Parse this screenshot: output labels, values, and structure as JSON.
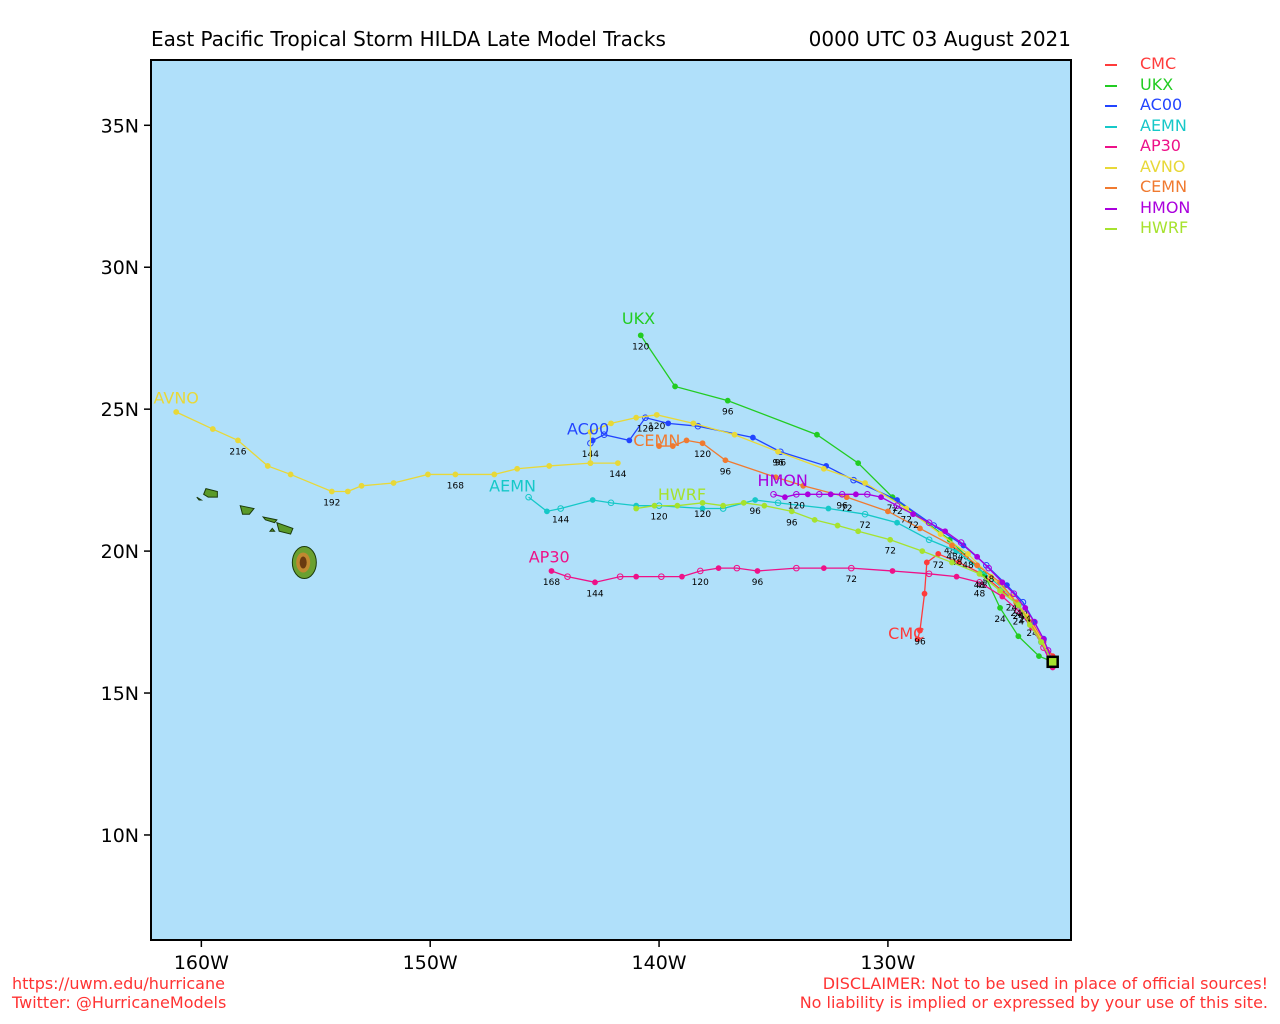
{
  "title": {
    "left": "East Pacific Tropical Storm HILDA Late Model Tracks",
    "right": "0000 UTC 03 August 2021"
  },
  "map": {
    "ocean_color": "#b0e0fa",
    "x_ticks": [
      "160W",
      "150W",
      "140W",
      "130W"
    ],
    "y_ticks": [
      "35N",
      "30N",
      "25N",
      "20N",
      "15N",
      "10N"
    ],
    "lon_range": [
      -162.2,
      -122.0
    ],
    "lat_range": [
      6.3,
      37.3
    ]
  },
  "legend": [
    {
      "name": "CMC",
      "color": "#ff3b3b"
    },
    {
      "name": "UKX",
      "color": "#22cc22"
    },
    {
      "name": "AC00",
      "color": "#2244ff"
    },
    {
      "name": "AEMN",
      "color": "#16c8c8"
    },
    {
      "name": "AP30",
      "color": "#ee1188"
    },
    {
      "name": "AVNO",
      "color": "#e8d838"
    },
    {
      "name": "CEMN",
      "color": "#f07a30"
    },
    {
      "name": "HMON",
      "color": "#aa00dd"
    },
    {
      "name": "HWRF",
      "color": "#a6e22e"
    }
  ],
  "tracks": [
    {
      "name": "CMC",
      "color": "#ff3b3b",
      "label": "CMC",
      "points": [
        [
          -122.8,
          16.3
        ],
        [
          -123.2,
          16.8
        ],
        [
          -123.7,
          17.5
        ],
        [
          -124.3,
          18.1
        ],
        [
          -125.0,
          18.6
        ],
        [
          -125.9,
          19.2
        ],
        [
          -126.9,
          19.6
        ],
        [
          -127.8,
          19.9
        ],
        [
          -128.3,
          19.6
        ],
        [
          -128.4,
          18.5
        ],
        [
          -128.6,
          17.2
        ],
        [
          -128.7,
          16.9
        ]
      ],
      "time_labels": [
        [
          2,
          "24"
        ],
        [
          5,
          "48"
        ],
        [
          7,
          "72"
        ],
        [
          10,
          "96"
        ]
      ]
    },
    {
      "name": "UKX",
      "color": "#22cc22",
      "label": "UKX",
      "points": [
        [
          -122.8,
          16.1
        ],
        [
          -123.4,
          16.3
        ],
        [
          -124.3,
          17.0
        ],
        [
          -125.1,
          18.0
        ],
        [
          -125.8,
          19.2
        ],
        [
          -127.3,
          20.4
        ],
        [
          -129.8,
          21.9
        ],
        [
          -131.3,
          23.1
        ],
        [
          -133.1,
          24.1
        ],
        [
          -137.0,
          25.3
        ],
        [
          -139.3,
          25.8
        ],
        [
          -140.8,
          27.6
        ]
      ],
      "time_labels": [
        [
          3,
          "24"
        ],
        [
          5,
          "48"
        ],
        [
          6,
          "72"
        ],
        [
          9,
          "96"
        ],
        [
          11,
          "120"
        ]
      ]
    },
    {
      "name": "AC00",
      "color": "#2244ff",
      "label": "AC00",
      "points": [
        [
          -122.8,
          16.1
        ],
        [
          -123.2,
          16.9
        ],
        [
          -123.6,
          17.5
        ],
        [
          -124.1,
          18.2
        ],
        [
          -124.8,
          18.8
        ],
        [
          -125.7,
          19.5
        ],
        [
          -126.7,
          20.2
        ],
        [
          -128.0,
          20.9
        ],
        [
          -129.6,
          21.8
        ],
        [
          -131.5,
          22.5
        ],
        [
          -132.7,
          23.0
        ],
        [
          -134.7,
          23.5
        ],
        [
          -135.9,
          24.0
        ],
        [
          -138.3,
          24.4
        ],
        [
          -139.6,
          24.5
        ],
        [
          -140.6,
          24.7
        ],
        [
          -141.3,
          23.9
        ],
        [
          -142.4,
          24.1
        ],
        [
          -142.9,
          23.9
        ],
        [
          -143.0,
          23.8
        ]
      ],
      "time_labels": [
        [
          3,
          "24"
        ],
        [
          6,
          "48"
        ],
        [
          8,
          "72"
        ],
        [
          11,
          "96"
        ],
        [
          15,
          "120"
        ],
        [
          19,
          "144"
        ]
      ]
    },
    {
      "name": "AEMN",
      "color": "#16c8c8",
      "label": "AEMN",
      "points": [
        [
          -122.8,
          16.1
        ],
        [
          -123.3,
          16.8
        ],
        [
          -123.8,
          17.5
        ],
        [
          -124.3,
          18.1
        ],
        [
          -125.0,
          18.7
        ],
        [
          -125.9,
          19.3
        ],
        [
          -127.0,
          20.0
        ],
        [
          -128.2,
          20.4
        ],
        [
          -129.6,
          21.0
        ],
        [
          -131.0,
          21.3
        ],
        [
          -132.6,
          21.5
        ],
        [
          -134.8,
          21.7
        ],
        [
          -135.8,
          21.8
        ],
        [
          -137.2,
          21.5
        ],
        [
          -138.1,
          21.5
        ],
        [
          -140.0,
          21.6
        ],
        [
          -141.0,
          21.6
        ],
        [
          -142.1,
          21.7
        ],
        [
          -142.9,
          21.8
        ],
        [
          -144.3,
          21.5
        ],
        [
          -144.9,
          21.4
        ],
        [
          -145.7,
          21.9
        ]
      ],
      "time_labels": [
        [
          3,
          "24"
        ],
        [
          6,
          "48"
        ],
        [
          9,
          "72"
        ],
        [
          12,
          "96"
        ],
        [
          15,
          "120"
        ],
        [
          19,
          "144"
        ]
      ]
    },
    {
      "name": "AP30",
      "color": "#ee1188",
      "label": "AP30",
      "points": [
        [
          -122.8,
          15.9
        ],
        [
          -123.2,
          16.6
        ],
        [
          -123.7,
          17.3
        ],
        [
          -124.3,
          17.9
        ],
        [
          -125.0,
          18.4
        ],
        [
          -126.0,
          18.9
        ],
        [
          -127.0,
          19.1
        ],
        [
          -128.2,
          19.2
        ],
        [
          -129.8,
          19.3
        ],
        [
          -131.6,
          19.4
        ],
        [
          -132.8,
          19.4
        ],
        [
          -134.0,
          19.4
        ],
        [
          -135.7,
          19.3
        ],
        [
          -136.6,
          19.4
        ],
        [
          -137.4,
          19.4
        ],
        [
          -138.2,
          19.3
        ],
        [
          -139.0,
          19.1
        ],
        [
          -139.9,
          19.1
        ],
        [
          -141.0,
          19.1
        ],
        [
          -141.7,
          19.1
        ],
        [
          -142.8,
          18.9
        ],
        [
          -144.0,
          19.1
        ],
        [
          -144.7,
          19.3
        ]
      ],
      "time_labels": [
        [
          3,
          "24"
        ],
        [
          5,
          "48"
        ],
        [
          9,
          "72"
        ],
        [
          12,
          "96"
        ],
        [
          15,
          "120"
        ],
        [
          20,
          "144"
        ],
        [
          22,
          "168"
        ]
      ]
    },
    {
      "name": "AVNO",
      "color": "#e8d838",
      "label": "AVNO",
      "points": [
        [
          -122.8,
          16.2
        ],
        [
          -123.3,
          16.9
        ],
        [
          -123.9,
          17.7
        ],
        [
          -124.6,
          18.4
        ],
        [
          -125.5,
          19.1
        ],
        [
          -126.5,
          19.9
        ],
        [
          -127.7,
          20.6
        ],
        [
          -129.2,
          21.5
        ],
        [
          -131.0,
          22.4
        ],
        [
          -132.8,
          22.9
        ],
        [
          -134.8,
          23.5
        ],
        [
          -136.7,
          24.1
        ],
        [
          -138.5,
          24.5
        ],
        [
          -140.1,
          24.8
        ],
        [
          -141.0,
          24.7
        ],
        [
          -142.1,
          24.5
        ],
        [
          -143.0,
          24.2
        ],
        [
          -143.0,
          23.1
        ],
        [
          -141.8,
          23.1
        ],
        [
          -143.0,
          23.1
        ],
        [
          -144.8,
          23.0
        ],
        [
          -146.2,
          22.9
        ],
        [
          -147.2,
          22.7
        ],
        [
          -148.9,
          22.7
        ],
        [
          -150.1,
          22.7
        ],
        [
          -151.6,
          22.4
        ],
        [
          -153.0,
          22.3
        ],
        [
          -153.6,
          22.1
        ],
        [
          -154.3,
          22.1
        ],
        [
          -156.1,
          22.7
        ],
        [
          -157.1,
          23.0
        ],
        [
          -158.4,
          23.9
        ],
        [
          -159.5,
          24.3
        ],
        [
          -161.1,
          24.9
        ]
      ],
      "time_labels": [
        [
          3,
          "24"
        ],
        [
          5,
          "48"
        ],
        [
          7,
          "72"
        ],
        [
          10,
          "96"
        ],
        [
          13,
          "120"
        ],
        [
          18,
          "144"
        ],
        [
          23,
          "168"
        ],
        [
          28,
          "192"
        ],
        [
          31,
          "216"
        ]
      ]
    },
    {
      "name": "CEMN",
      "color": "#f07a30",
      "label": "CEMN",
      "points": [
        [
          -122.8,
          16.1
        ],
        [
          -123.3,
          16.8
        ],
        [
          -123.8,
          17.5
        ],
        [
          -124.4,
          18.2
        ],
        [
          -125.1,
          18.9
        ],
        [
          -126.1,
          19.5
        ],
        [
          -127.2,
          20.2
        ],
        [
          -128.6,
          20.8
        ],
        [
          -130.0,
          21.4
        ],
        [
          -131.8,
          21.9
        ],
        [
          -133.7,
          22.3
        ],
        [
          -134.9,
          22.6
        ],
        [
          -137.1,
          23.2
        ],
        [
          -138.1,
          23.8
        ],
        [
          -138.8,
          23.9
        ],
        [
          -139.4,
          23.7
        ],
        [
          -140.0,
          23.7
        ]
      ],
      "time_labels": [
        [
          3,
          "24"
        ],
        [
          6,
          "48"
        ],
        [
          9,
          "72"
        ],
        [
          12,
          "96"
        ],
        [
          13,
          "120"
        ]
      ]
    },
    {
      "name": "HMON",
      "color": "#aa00dd",
      "label": "HMON",
      "points": [
        [
          -122.8,
          16.1
        ],
        [
          -123.0,
          16.5
        ],
        [
          -123.2,
          16.9
        ],
        [
          -123.6,
          17.5
        ],
        [
          -124.0,
          18.0
        ],
        [
          -124.5,
          18.5
        ],
        [
          -125.0,
          18.9
        ],
        [
          -125.6,
          19.4
        ],
        [
          -126.1,
          19.8
        ],
        [
          -126.8,
          20.3
        ],
        [
          -127.5,
          20.7
        ],
        [
          -128.2,
          21.0
        ],
        [
          -128.9,
          21.3
        ],
        [
          -129.6,
          21.6
        ],
        [
          -130.3,
          21.9
        ],
        [
          -130.9,
          22.0
        ],
        [
          -131.4,
          22.0
        ],
        [
          -132.0,
          22.0
        ],
        [
          -132.5,
          22.0
        ],
        [
          -133.0,
          22.0
        ],
        [
          -133.5,
          22.0
        ],
        [
          -134.0,
          22.0
        ],
        [
          -134.5,
          21.9
        ],
        [
          -135.0,
          22.0
        ]
      ],
      "time_labels": [
        [
          4,
          "24"
        ],
        [
          7,
          "48"
        ],
        [
          12,
          "72"
        ],
        [
          17,
          "96"
        ],
        [
          21,
          "120"
        ]
      ]
    },
    {
      "name": "HWRF",
      "color": "#a6e22e",
      "label": "HWRF",
      "points": [
        [
          -122.8,
          16.1
        ],
        [
          -123.3,
          16.8
        ],
        [
          -123.8,
          17.4
        ],
        [
          -124.3,
          18.1
        ],
        [
          -125.1,
          18.6
        ],
        [
          -126.0,
          19.2
        ],
        [
          -127.2,
          19.6
        ],
        [
          -128.5,
          20.0
        ],
        [
          -129.9,
          20.4
        ],
        [
          -131.3,
          20.7
        ],
        [
          -132.2,
          20.9
        ],
        [
          -133.2,
          21.1
        ],
        [
          -134.2,
          21.4
        ],
        [
          -135.4,
          21.6
        ],
        [
          -136.3,
          21.7
        ],
        [
          -137.2,
          21.6
        ],
        [
          -138.1,
          21.7
        ],
        [
          -139.2,
          21.6
        ],
        [
          -140.2,
          21.6
        ],
        [
          -141.0,
          21.5
        ]
      ],
      "time_labels": [
        [
          3,
          "24"
        ],
        [
          5,
          "48"
        ],
        [
          8,
          "72"
        ],
        [
          12,
          "96"
        ],
        [
          16,
          "120"
        ]
      ]
    }
  ],
  "track_name_labels": [
    {
      "name": "UKX",
      "lon": -140.9,
      "lat": 28.0
    },
    {
      "name": "AVNO",
      "lon": -161.1,
      "lat": 25.2
    },
    {
      "name": "AC00",
      "lon": -143.1,
      "lat": 24.1
    },
    {
      "name": "CEMN",
      "lon": -140.1,
      "lat": 23.7
    },
    {
      "name": "AEMN",
      "lon": -146.4,
      "lat": 22.1
    },
    {
      "name": "HWRF",
      "lon": -139.0,
      "lat": 21.8
    },
    {
      "name": "HMON",
      "lon": -134.6,
      "lat": 22.3
    },
    {
      "name": "AP30",
      "lon": -144.8,
      "lat": 19.6
    },
    {
      "name": "CMC",
      "lon": -129.2,
      "lat": 16.9
    }
  ],
  "footer": {
    "left_line1": "https://uwm.edu/hurricane",
    "left_line2": "Twitter: @HurricaneModels",
    "right_line1": "DISCLAIMER: Not to be used in place of official sources!",
    "right_line2": "No liability is implied or expressed by your use of this site."
  }
}
